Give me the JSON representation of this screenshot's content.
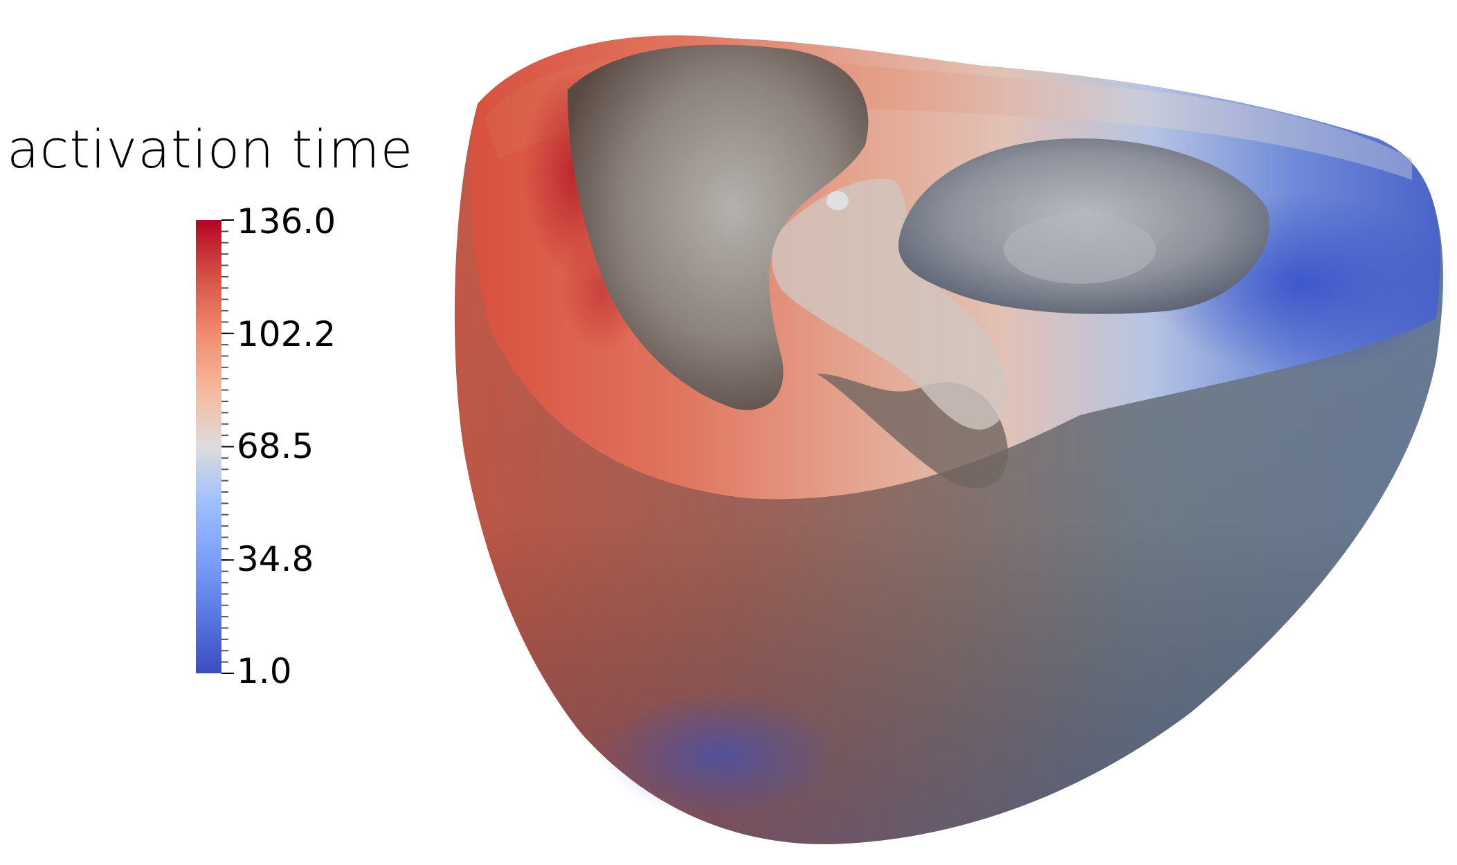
{
  "legend": {
    "title": "activation time",
    "range": [
      1.0,
      136.0
    ],
    "ticks": [
      "136.0",
      "102.2",
      "68.5",
      "34.8",
      "1.0"
    ],
    "colors": {
      "high": "#b40426",
      "mid": "#dddddd",
      "low": "#3b4cc0"
    }
  },
  "scene": {
    "subject": "heart-ventricles-mesh",
    "background": "#ffffff"
  }
}
